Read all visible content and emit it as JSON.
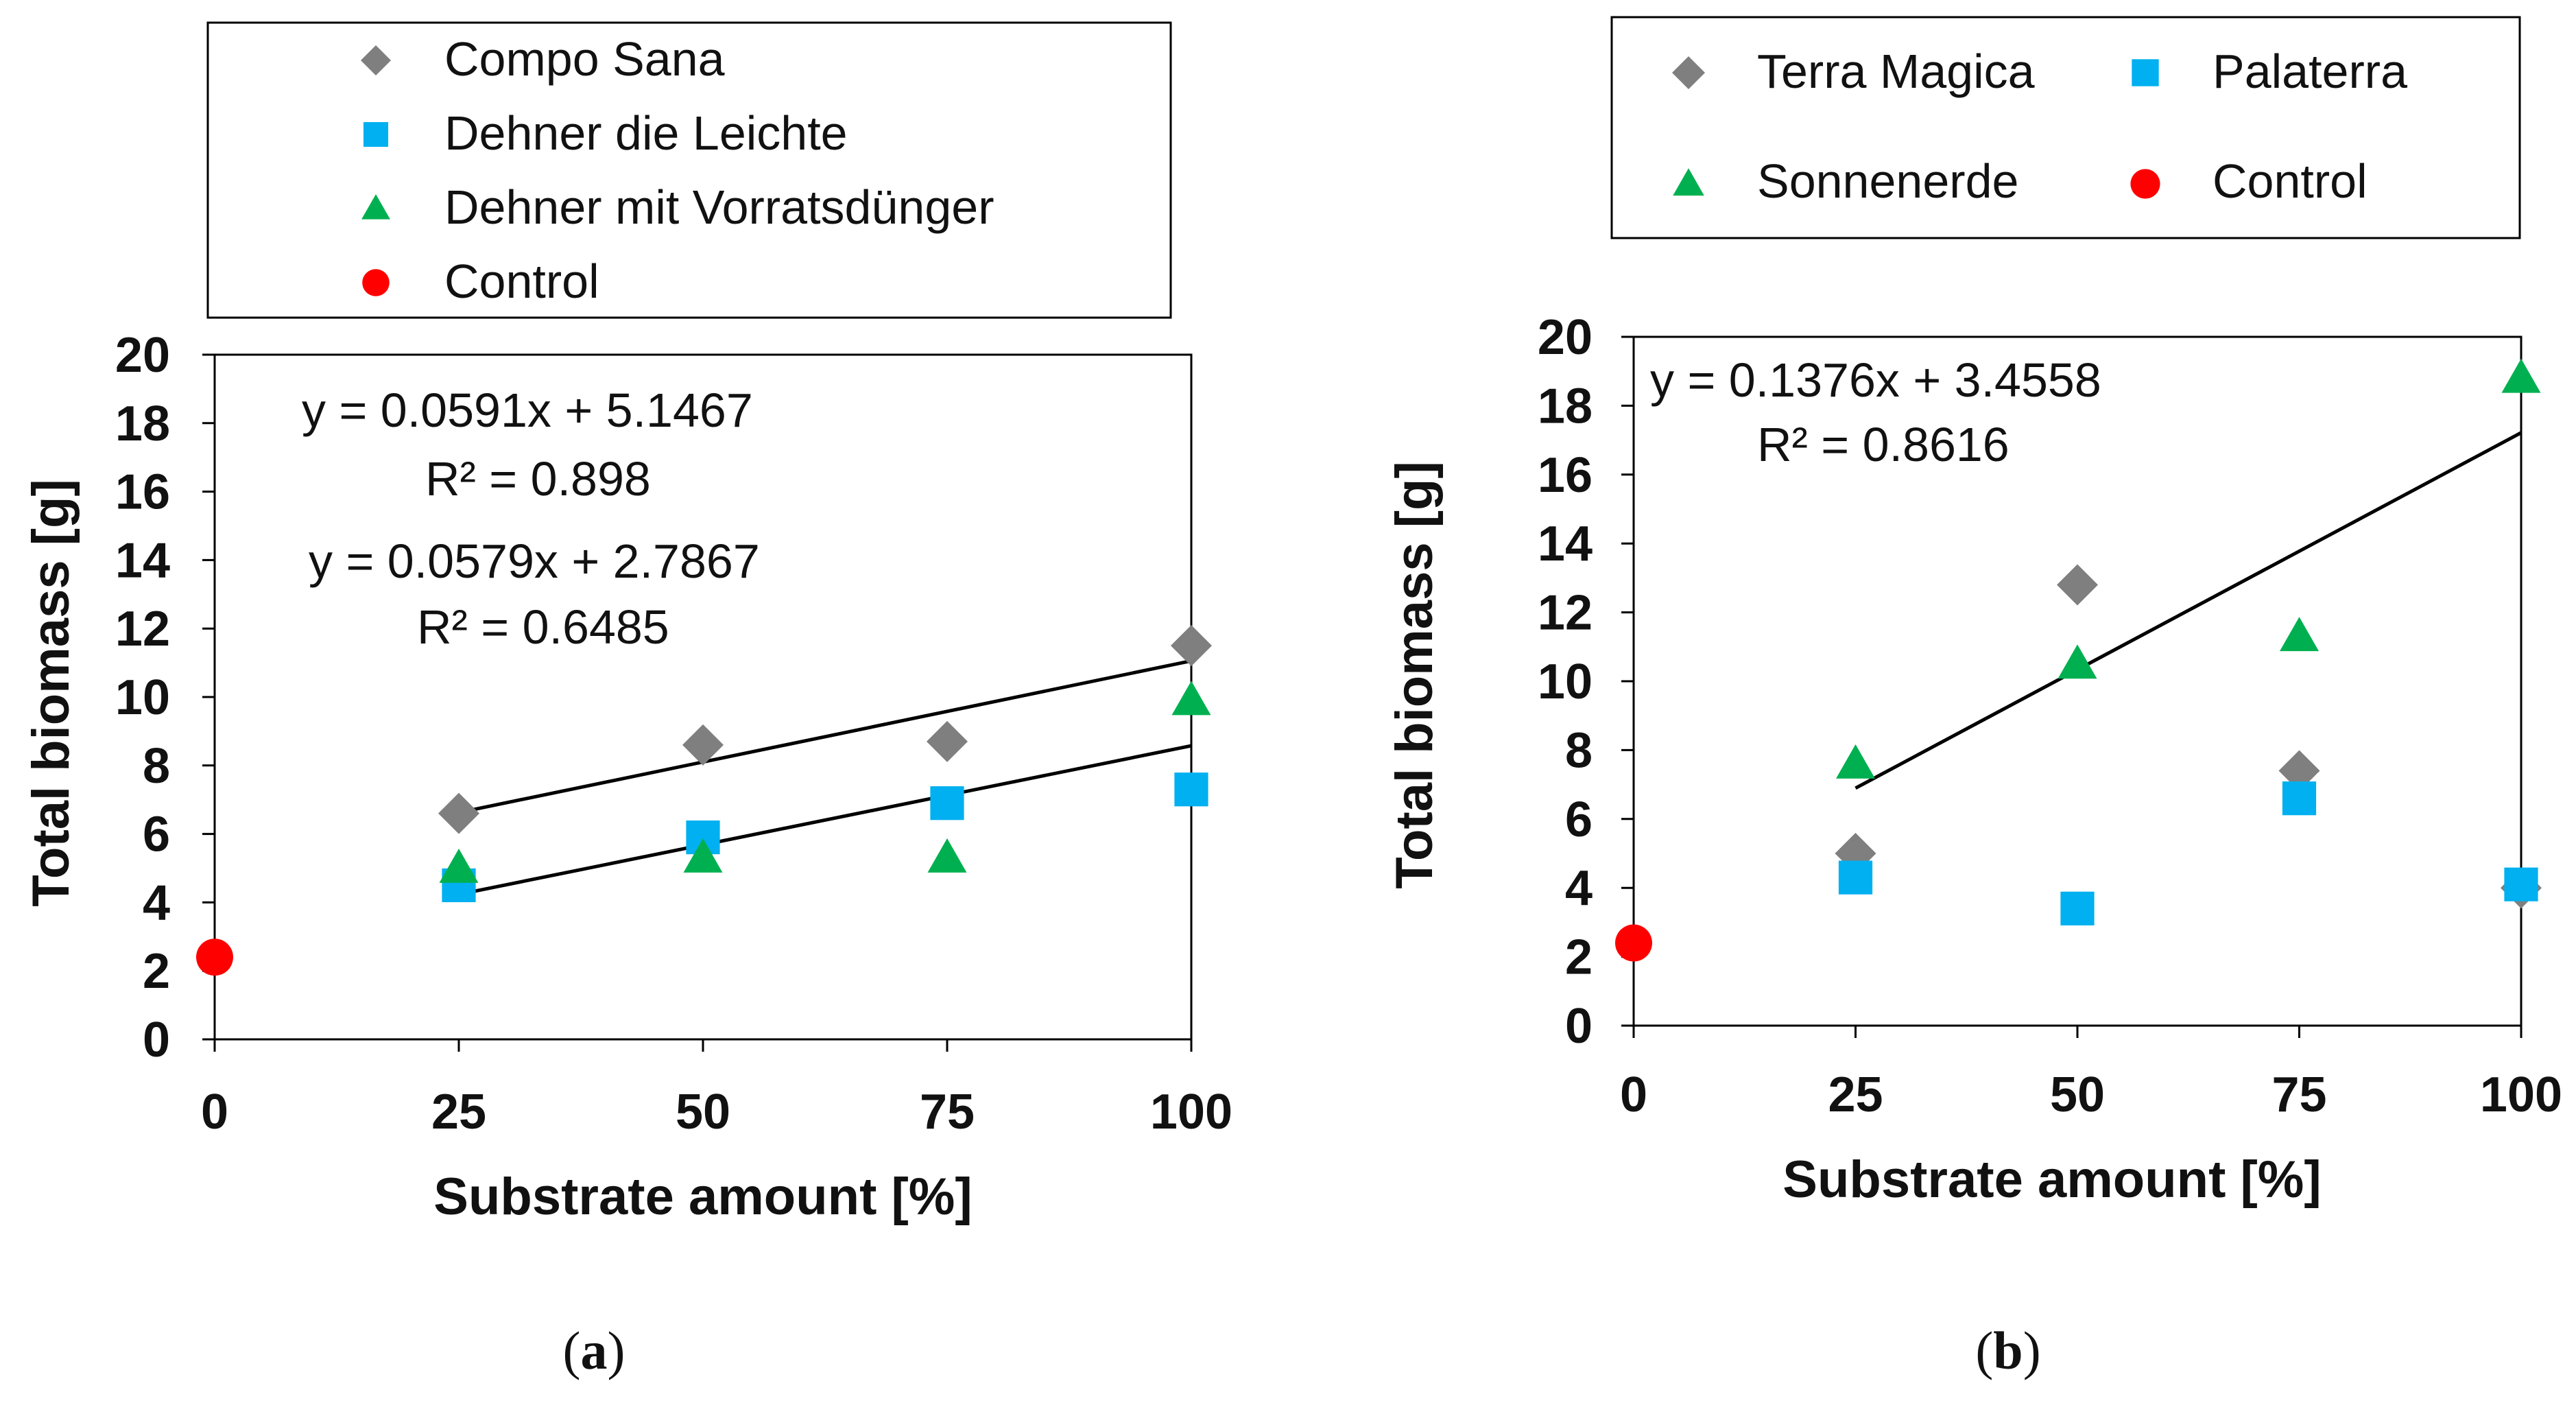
{
  "colors": {
    "gray": "#7f7f7f",
    "blue": "#00b0f0",
    "green": "#00b050",
    "red": "#ff0000",
    "line": "#000000"
  },
  "chart_data": [
    {
      "type": "scatter",
      "panel_label": "a",
      "xlabel": "Substrate amount [%]",
      "ylabel": "Total biomass [g]",
      "xticks": [
        0,
        25,
        50,
        75,
        100
      ],
      "yticks": [
        0,
        2,
        4,
        6,
        8,
        10,
        12,
        14,
        16,
        18,
        20
      ],
      "xlim": [
        0,
        100
      ],
      "ylim": [
        0,
        20
      ],
      "legend_position": "top",
      "series": [
        {
          "name": "Compo Sana",
          "marker": "diamond",
          "color": "gray",
          "x": [
            25,
            50,
            75,
            100
          ],
          "y": [
            6.6,
            8.6,
            8.7,
            11.5
          ]
        },
        {
          "name": "Dehner die Leichte",
          "marker": "square",
          "color": "blue",
          "x": [
            25,
            50,
            75,
            100
          ],
          "y": [
            4.5,
            5.9,
            6.9,
            7.3
          ]
        },
        {
          "name": "Dehner mit Vorratsdünger",
          "marker": "triangle",
          "color": "green",
          "x": [
            25,
            50,
            75,
            100
          ],
          "y": [
            5.0,
            5.3,
            5.3,
            9.9
          ]
        },
        {
          "name": "Control",
          "marker": "circle",
          "color": "red",
          "x": [
            0
          ],
          "y": [
            2.4
          ]
        }
      ],
      "trendlines": [
        {
          "x_start": 25,
          "x_end": 100,
          "slope": 0.0591,
          "intercept": 5.1467,
          "equation": "y = 0.0591x + 5.1467",
          "r2": "R² = 0.898"
        },
        {
          "x_start": 25,
          "x_end": 100,
          "slope": 0.0579,
          "intercept": 2.7867,
          "equation": "y = 0.0579x + 2.7867",
          "r2": "R² = 0.6485"
        }
      ]
    },
    {
      "type": "scatter",
      "panel_label": "b",
      "xlabel": "Substrate amount [%]",
      "ylabel": "Total biomass [g]",
      "xticks": [
        0,
        25,
        50,
        75,
        100
      ],
      "yticks": [
        0,
        2,
        4,
        6,
        8,
        10,
        12,
        14,
        16,
        18,
        20
      ],
      "xlim": [
        0,
        100
      ],
      "ylim": [
        0,
        20
      ],
      "legend_position": "top",
      "series": [
        {
          "name": "Terra Magica",
          "marker": "diamond",
          "color": "gray",
          "x": [
            25,
            50,
            75,
            100
          ],
          "y": [
            5.0,
            12.8,
            7.4,
            4.0
          ]
        },
        {
          "name": "Palaterra",
          "marker": "square",
          "color": "blue",
          "x": [
            25,
            50,
            75,
            100
          ],
          "y": [
            4.3,
            3.4,
            6.6,
            4.1
          ]
        },
        {
          "name": "Sonnenerde",
          "marker": "triangle",
          "color": "green",
          "x": [
            25,
            50,
            75,
            100
          ],
          "y": [
            7.6,
            10.5,
            11.3,
            18.8
          ]
        },
        {
          "name": "Control",
          "marker": "circle",
          "color": "red",
          "x": [
            0
          ],
          "y": [
            2.4
          ]
        }
      ],
      "trendlines": [
        {
          "x_start": 25,
          "x_end": 100,
          "slope": 0.1376,
          "intercept": 3.4558,
          "equation": "y = 0.1376x + 3.4558",
          "r2": "R² = 0.8616"
        }
      ]
    }
  ]
}
